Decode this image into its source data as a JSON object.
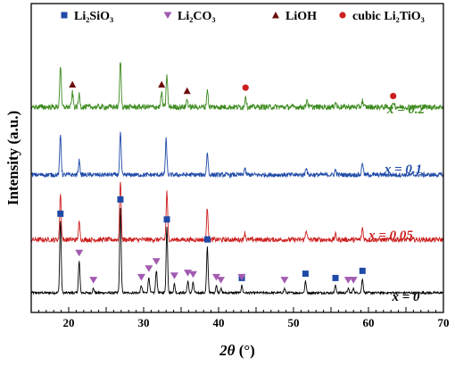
{
  "chart_data": {
    "type": "line",
    "xlabel": {
      "italic": "2θ",
      "rest": " (°)"
    },
    "ylabel": "Intensity (a.u.)",
    "xlim": [
      15,
      70
    ],
    "xticks": [
      20,
      30,
      40,
      50,
      60,
      70
    ],
    "colors": {
      "axis": "#000000",
      "square": "#1f4aa8",
      "triangle_down": "#a25bb0",
      "triangle_up": "#6b0d0d",
      "circle": "#cc1f1f"
    },
    "legend": [
      {
        "name": "Li₂SiO₃",
        "marker": "square"
      },
      {
        "name": "Li₂CO₃",
        "marker": "triangle_down"
      },
      {
        "name": "LiOH",
        "marker": "triangle_up"
      },
      {
        "name": "cubic Li₂TiO₃",
        "marker": "circle"
      }
    ],
    "series": [
      {
        "name": "x = 0",
        "color": "#000000",
        "baseline": 0.1,
        "noise": 0.08,
        "peaks": [
          [
            18.9,
            5.0
          ],
          [
            21.4,
            2.2
          ],
          [
            23.3,
            0.3
          ],
          [
            26.9,
            6.0
          ],
          [
            29.7,
            0.5
          ],
          [
            30.7,
            1.1
          ],
          [
            31.7,
            1.6
          ],
          [
            33.1,
            4.6
          ],
          [
            34.1,
            0.6
          ],
          [
            35.9,
            0.8
          ],
          [
            36.6,
            0.7
          ],
          [
            38.5,
            3.2
          ],
          [
            39.7,
            0.5
          ],
          [
            40.3,
            0.3
          ],
          [
            43.1,
            0.5
          ],
          [
            48.8,
            0.3
          ],
          [
            51.6,
            0.8
          ],
          [
            55.6,
            0.5
          ],
          [
            57.3,
            0.3
          ],
          [
            58.0,
            0.3
          ],
          [
            59.2,
            1.0
          ]
        ]
      },
      {
        "name": "x = 0.05",
        "color": "#cc1f1f",
        "baseline": 0.3,
        "noise": 0.14,
        "peaks": [
          [
            18.9,
            2.7
          ],
          [
            21.4,
            1.0
          ],
          [
            26.9,
            3.5
          ],
          [
            33.1,
            2.8
          ],
          [
            38.5,
            1.9
          ],
          [
            43.5,
            0.4
          ],
          [
            51.7,
            0.6
          ],
          [
            55.6,
            0.3
          ],
          [
            59.2,
            0.7
          ]
        ]
      },
      {
        "name": "x = 0.1",
        "color": "#1f4aa8",
        "baseline": 0.3,
        "noise": 0.14,
        "peaks": [
          [
            18.9,
            2.5
          ],
          [
            21.4,
            0.9
          ],
          [
            26.9,
            2.6
          ],
          [
            33.0,
            2.2
          ],
          [
            38.5,
            1.4
          ],
          [
            43.5,
            0.4
          ],
          [
            51.7,
            0.5
          ],
          [
            55.6,
            0.3
          ],
          [
            59.2,
            0.8
          ]
        ]
      },
      {
        "name": "x = 0.2",
        "color": "#3c8a1e",
        "baseline": 0.4,
        "noise": 0.17,
        "peaks": [
          [
            18.9,
            2.6
          ],
          [
            20.5,
            0.9
          ],
          [
            21.4,
            0.8
          ],
          [
            26.9,
            2.9
          ],
          [
            32.4,
            0.9
          ],
          [
            33.1,
            2.0
          ],
          [
            35.8,
            0.5
          ],
          [
            38.5,
            1.1
          ],
          [
            43.6,
            0.7
          ],
          [
            51.8,
            0.5
          ],
          [
            55.6,
            0.3
          ],
          [
            59.2,
            0.4
          ],
          [
            63.4,
            0.3
          ]
        ]
      }
    ],
    "markers": [
      {
        "series": 0,
        "type": "square",
        "x": [
          18.9,
          26.9,
          33.1,
          38.5,
          43.1,
          51.6,
          55.6,
          59.2
        ]
      },
      {
        "series": 0,
        "type": "triangle_down",
        "x": [
          21.4,
          23.3,
          29.7,
          30.7,
          31.7,
          34.1,
          35.9,
          36.6,
          39.7,
          40.3,
          43.1,
          48.8,
          57.3,
          58.0
        ]
      },
      {
        "series": 3,
        "type": "triangle_up",
        "x": [
          20.5,
          32.4,
          35.8
        ]
      },
      {
        "series": 3,
        "type": "circle",
        "x": [
          43.6,
          63.3
        ]
      }
    ]
  }
}
